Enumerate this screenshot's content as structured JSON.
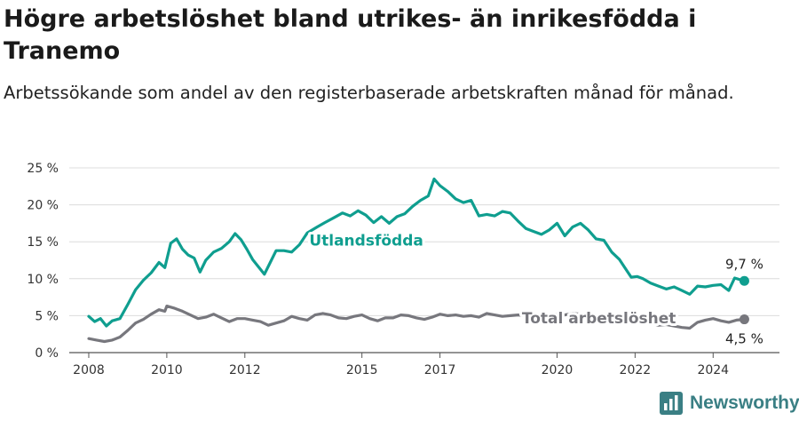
{
  "header": {
    "title": "Högre arbetslöshet bland utrikes- än inrikesfödda i Tranemo",
    "subtitle": "Arbetssökande som andel av den registerbaserade arbetskraften månad för månad."
  },
  "brand": {
    "name": "Newsworthy",
    "icon": "newsworthy-logo-icon",
    "color": "#3a7f84"
  },
  "chart_data": {
    "type": "line",
    "ylim": [
      0,
      25
    ],
    "yticks": [
      0,
      5,
      10,
      15,
      20,
      25
    ],
    "ytick_labels": [
      "0 %",
      "5 %",
      "10 %",
      "15 %",
      "20 %",
      "25 %"
    ],
    "xlim": [
      2007.5,
      2025.7
    ],
    "xticks": [
      2008,
      2010,
      2012,
      2015,
      2017,
      2020,
      2022,
      2024
    ],
    "xtick_labels": [
      "2008",
      "2010",
      "2012",
      "2015",
      "2017",
      "2020",
      "2022",
      "2024"
    ],
    "grid": true,
    "series": [
      {
        "name": "Utlandsfödda",
        "color": "#0f9e8f",
        "end_label": "9,7 %",
        "points": [
          [
            2008.0,
            4.9
          ],
          [
            2008.15,
            4.2
          ],
          [
            2008.3,
            4.6
          ],
          [
            2008.45,
            3.6
          ],
          [
            2008.6,
            4.3
          ],
          [
            2008.8,
            4.6
          ],
          [
            2009.0,
            6.5
          ],
          [
            2009.2,
            8.5
          ],
          [
            2009.4,
            9.8
          ],
          [
            2009.6,
            10.8
          ],
          [
            2009.8,
            12.2
          ],
          [
            2009.95,
            11.5
          ],
          [
            2010.1,
            14.8
          ],
          [
            2010.25,
            15.4
          ],
          [
            2010.4,
            14.0
          ],
          [
            2010.55,
            13.2
          ],
          [
            2010.7,
            12.8
          ],
          [
            2010.85,
            10.9
          ],
          [
            2011.0,
            12.5
          ],
          [
            2011.2,
            13.6
          ],
          [
            2011.4,
            14.1
          ],
          [
            2011.6,
            15.0
          ],
          [
            2011.75,
            16.1
          ],
          [
            2011.9,
            15.3
          ],
          [
            2012.05,
            14.0
          ],
          [
            2012.2,
            12.6
          ],
          [
            2012.35,
            11.6
          ],
          [
            2012.5,
            10.6
          ],
          [
            2012.65,
            12.2
          ],
          [
            2012.8,
            13.8
          ],
          [
            2013.0,
            13.8
          ],
          [
            2013.2,
            13.6
          ],
          [
            2013.4,
            14.6
          ],
          [
            2013.6,
            16.2
          ],
          [
            2013.85,
            17.0
          ],
          [
            2014.05,
            17.6
          ],
          [
            2014.3,
            18.3
          ],
          [
            2014.5,
            18.9
          ],
          [
            2014.7,
            18.5
          ],
          [
            2014.9,
            19.2
          ],
          [
            2015.1,
            18.6
          ],
          [
            2015.3,
            17.6
          ],
          [
            2015.5,
            18.4
          ],
          [
            2015.7,
            17.5
          ],
          [
            2015.9,
            18.4
          ],
          [
            2016.1,
            18.8
          ],
          [
            2016.3,
            19.8
          ],
          [
            2016.5,
            20.6
          ],
          [
            2016.7,
            21.2
          ],
          [
            2016.85,
            23.5
          ],
          [
            2017.0,
            22.6
          ],
          [
            2017.2,
            21.8
          ],
          [
            2017.4,
            20.8
          ],
          [
            2017.6,
            20.3
          ],
          [
            2017.8,
            20.6
          ],
          [
            2018.0,
            18.5
          ],
          [
            2018.2,
            18.7
          ],
          [
            2018.4,
            18.5
          ],
          [
            2018.6,
            19.1
          ],
          [
            2018.8,
            18.9
          ],
          [
            2019.0,
            17.8
          ],
          [
            2019.2,
            16.8
          ],
          [
            2019.4,
            16.4
          ],
          [
            2019.6,
            16.0
          ],
          [
            2019.8,
            16.6
          ],
          [
            2020.0,
            17.5
          ],
          [
            2020.2,
            15.8
          ],
          [
            2020.4,
            17.0
          ],
          [
            2020.6,
            17.5
          ],
          [
            2020.8,
            16.6
          ],
          [
            2021.0,
            15.4
          ],
          [
            2021.2,
            15.2
          ],
          [
            2021.4,
            13.6
          ],
          [
            2021.6,
            12.6
          ],
          [
            2021.75,
            11.4
          ],
          [
            2021.9,
            10.2
          ],
          [
            2022.05,
            10.3
          ],
          [
            2022.2,
            10.0
          ],
          [
            2022.4,
            9.4
          ],
          [
            2022.6,
            9.0
          ],
          [
            2022.8,
            8.6
          ],
          [
            2023.0,
            8.9
          ],
          [
            2023.2,
            8.4
          ],
          [
            2023.4,
            7.9
          ],
          [
            2023.6,
            9.0
          ],
          [
            2023.8,
            8.9
          ],
          [
            2024.0,
            9.1
          ],
          [
            2024.2,
            9.2
          ],
          [
            2024.4,
            8.4
          ],
          [
            2024.55,
            10.1
          ],
          [
            2024.8,
            9.7
          ]
        ]
      },
      {
        "name": "Total arbetslöshet",
        "color": "#77777d",
        "end_label": "4,5 %",
        "points": [
          [
            2008.0,
            1.9
          ],
          [
            2008.2,
            1.7
          ],
          [
            2008.4,
            1.5
          ],
          [
            2008.6,
            1.7
          ],
          [
            2008.8,
            2.1
          ],
          [
            2009.0,
            3.0
          ],
          [
            2009.2,
            4.0
          ],
          [
            2009.4,
            4.5
          ],
          [
            2009.6,
            5.2
          ],
          [
            2009.8,
            5.8
          ],
          [
            2009.95,
            5.6
          ],
          [
            2010.0,
            6.3
          ],
          [
            2010.2,
            6.0
          ],
          [
            2010.4,
            5.6
          ],
          [
            2010.6,
            5.1
          ],
          [
            2010.8,
            4.6
          ],
          [
            2011.0,
            4.8
          ],
          [
            2011.2,
            5.2
          ],
          [
            2011.4,
            4.7
          ],
          [
            2011.6,
            4.2
          ],
          [
            2011.8,
            4.6
          ],
          [
            2012.0,
            4.6
          ],
          [
            2012.2,
            4.4
          ],
          [
            2012.4,
            4.2
          ],
          [
            2012.6,
            3.7
          ],
          [
            2012.8,
            4.0
          ],
          [
            2013.0,
            4.3
          ],
          [
            2013.2,
            4.9
          ],
          [
            2013.4,
            4.6
          ],
          [
            2013.6,
            4.4
          ],
          [
            2013.8,
            5.1
          ],
          [
            2014.0,
            5.3
          ],
          [
            2014.2,
            5.1
          ],
          [
            2014.4,
            4.7
          ],
          [
            2014.6,
            4.6
          ],
          [
            2014.8,
            4.9
          ],
          [
            2015.0,
            5.1
          ],
          [
            2015.2,
            4.6
          ],
          [
            2015.4,
            4.3
          ],
          [
            2015.6,
            4.7
          ],
          [
            2015.8,
            4.7
          ],
          [
            2016.0,
            5.1
          ],
          [
            2016.2,
            5.0
          ],
          [
            2016.4,
            4.7
          ],
          [
            2016.6,
            4.5
          ],
          [
            2016.8,
            4.8
          ],
          [
            2017.0,
            5.2
          ],
          [
            2017.2,
            5.0
          ],
          [
            2017.4,
            5.1
          ],
          [
            2017.6,
            4.9
          ],
          [
            2017.8,
            5.0
          ],
          [
            2018.0,
            4.8
          ],
          [
            2018.2,
            5.3
          ],
          [
            2018.4,
            5.1
          ],
          [
            2018.6,
            4.9
          ],
          [
            2018.8,
            5.0
          ],
          [
            2019.0,
            5.1
          ],
          [
            2019.2,
            5.0
          ],
          [
            2019.4,
            4.8
          ],
          [
            2019.6,
            4.9
          ],
          [
            2019.8,
            5.0
          ],
          [
            2020.0,
            5.2
          ],
          [
            2020.2,
            5.1
          ],
          [
            2020.4,
            5.3
          ],
          [
            2020.6,
            5.2
          ],
          [
            2020.8,
            5.0
          ],
          [
            2021.0,
            4.9
          ],
          [
            2021.2,
            4.8
          ],
          [
            2021.4,
            4.9
          ],
          [
            2021.6,
            4.6
          ],
          [
            2021.8,
            4.3
          ],
          [
            2022.0,
            4.1
          ],
          [
            2022.2,
            3.9
          ],
          [
            2022.4,
            4.0
          ],
          [
            2022.6,
            3.7
          ],
          [
            2022.8,
            3.8
          ],
          [
            2023.0,
            3.6
          ],
          [
            2023.2,
            3.4
          ],
          [
            2023.4,
            3.3
          ],
          [
            2023.6,
            4.1
          ],
          [
            2023.8,
            4.4
          ],
          [
            2024.0,
            4.6
          ],
          [
            2024.2,
            4.3
          ],
          [
            2024.4,
            4.1
          ],
          [
            2024.6,
            4.4
          ],
          [
            2024.8,
            4.5
          ]
        ]
      }
    ],
    "annotations": [
      {
        "text": "Utlandsfödda",
        "series": 0,
        "x": 2013.65,
        "y": 15.2,
        "color": "#0f9e8f"
      },
      {
        "text": "Total arbetslöshet",
        "series": 1,
        "x": 2019.1,
        "y": 4.7,
        "color": "#77777d"
      }
    ]
  }
}
